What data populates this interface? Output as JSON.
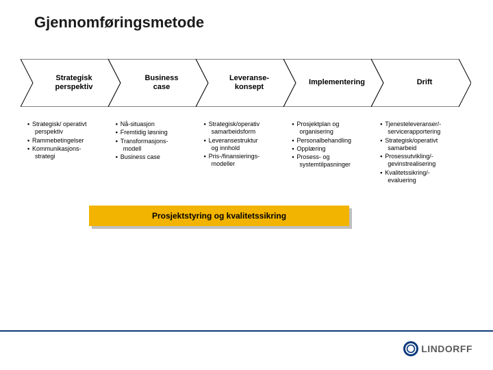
{
  "title": "Gjennomføringsmetode",
  "colors": {
    "arrow_fill": "#ffffff",
    "arrow_stroke": "#000000",
    "bar_bg": "#f2b400",
    "bar_shadow": "#bfbfbf",
    "footer_line": "#0b3a7b",
    "logo_ring": "#0b3a7b",
    "logo_text": "#5a5a5a"
  },
  "layout": {
    "arrow_row_width": 640,
    "arrow_height": 70,
    "arrow_notch": 18,
    "stages_count": 5
  },
  "typography": {
    "title_fontsize": 22,
    "arrow_label_fontsize": 11,
    "bullet_fontsize": 9,
    "bar_fontsize": 12,
    "logo_fontsize": 14
  },
  "stages": [
    {
      "label": "Strategisk\nperspektiv",
      "bullets": [
        "Strategisk/ operativt\n  perspektiv",
        "Rammebetingelser",
        "Kommunikasjons-\n  strategi"
      ]
    },
    {
      "label": "Business\ncase",
      "bullets": [
        "Nå-situasjon",
        "Fremtidig løsning",
        "Transformasjons-\n  modell",
        "Business case"
      ]
    },
    {
      "label": "Leveranse-\nkonsept",
      "bullets": [
        "Strategisk/operativ\n  samarbeidsform",
        "Leveransestruktur\n  og innhold",
        "Pris-/finansierings-\n  modeller"
      ]
    },
    {
      "label": "Implementering",
      "bullets": [
        "Prosjektplan og\n  organisering",
        "Personalbehandling",
        "Opplæring",
        "Prosess- og\n  systemtilpasninger"
      ]
    },
    {
      "label": "Drift",
      "bullets": [
        "Tjenesteleveranser/-\n  servicerapportering",
        "Strategisk/operativt\n  samarbeid",
        "Prosessutvikling/-\n  gevinstrealisering",
        "Kvalitetssikring/-\n  evaluering"
      ]
    }
  ],
  "bar_label": "Prosjektstyring og kvalitetssikring",
  "logo_text": "LINDORFF"
}
